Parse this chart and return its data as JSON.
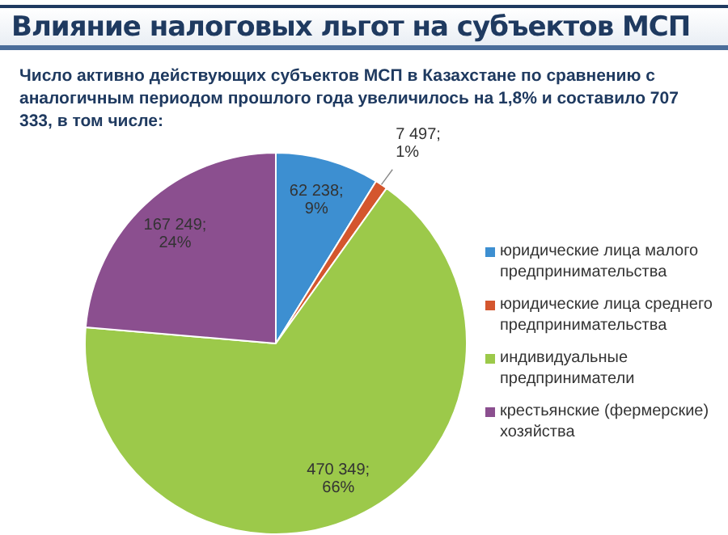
{
  "chart_data": {
    "type": "pie",
    "title": "Влияние налоговых льгот на субъектов МСП",
    "subtitle": "Число активно действующих субъектов МСП в Казахстане по сравнению с аналогичным периодом прошлого года увеличилось на 1,8% и составило 707 333, в том числе:",
    "categories": [
      "юридические лица малого предпринимательства",
      "юридические лица среднего предпринимательства",
      "индивидуальные предприниматели",
      "крестьянские (фермерские) хозяйства"
    ],
    "values": [
      62238,
      7497,
      470349,
      167249
    ],
    "value_labels": [
      "62 238; 9%",
      "7 497; 1%",
      "470 349; 66%",
      "167 249; 24%"
    ],
    "colors": [
      "#3d8fd1",
      "#d4562e",
      "#9cc94a",
      "#8b4f8f"
    ],
    "legend": "right"
  }
}
